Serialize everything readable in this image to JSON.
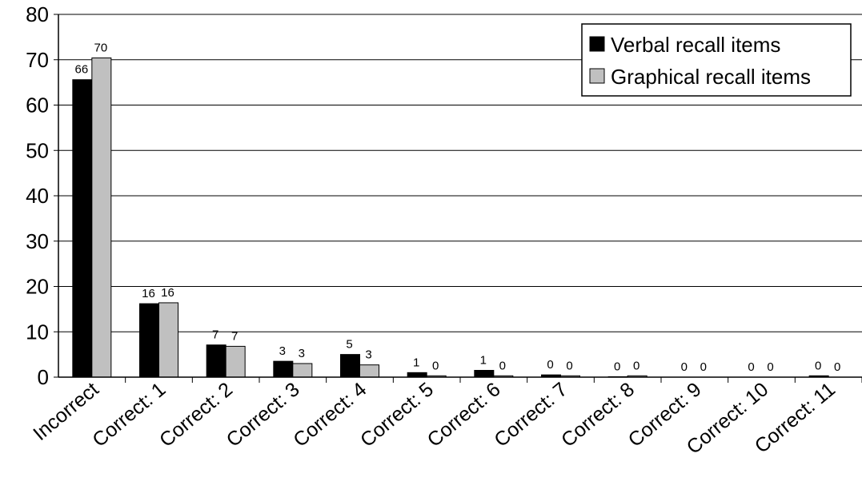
{
  "chart_data": {
    "type": "bar",
    "title": "",
    "xlabel": "",
    "ylabel": "",
    "ylim": [
      0,
      80
    ],
    "yticks": [
      0,
      10,
      20,
      30,
      40,
      50,
      60,
      70,
      80
    ],
    "grid": true,
    "legend_position": "top-right",
    "categories": [
      "Incorrect",
      "Correct: 1",
      "Correct: 2",
      "Correct: 3",
      "Correct: 4",
      "Correct: 5",
      "Correct: 6",
      "Correct: 7",
      "Correct: 8",
      "Correct: 9",
      "Correct: 10",
      "Correct: 11"
    ],
    "series": [
      {
        "name": "Verbal recall items",
        "color": "#000000",
        "values": [
          65.6,
          16.2,
          7.1,
          3.5,
          5.0,
          1.0,
          1.5,
          0.5,
          0.1,
          0.0,
          0.0,
          0.3
        ],
        "labels": [
          "66",
          "16",
          "7",
          "3",
          "5",
          "1",
          "1",
          "0",
          "0",
          "0",
          "0",
          "0"
        ]
      },
      {
        "name": "Graphical recall items",
        "color": "#c0c0c0",
        "values": [
          70.4,
          16.4,
          6.8,
          3.0,
          2.7,
          0.3,
          0.3,
          0.3,
          0.3,
          0.0,
          0.0,
          0.0
        ],
        "labels": [
          "70",
          "16",
          "7",
          "3",
          "3",
          "0",
          "0",
          "0",
          "0",
          "0",
          "0",
          "0"
        ]
      }
    ]
  }
}
